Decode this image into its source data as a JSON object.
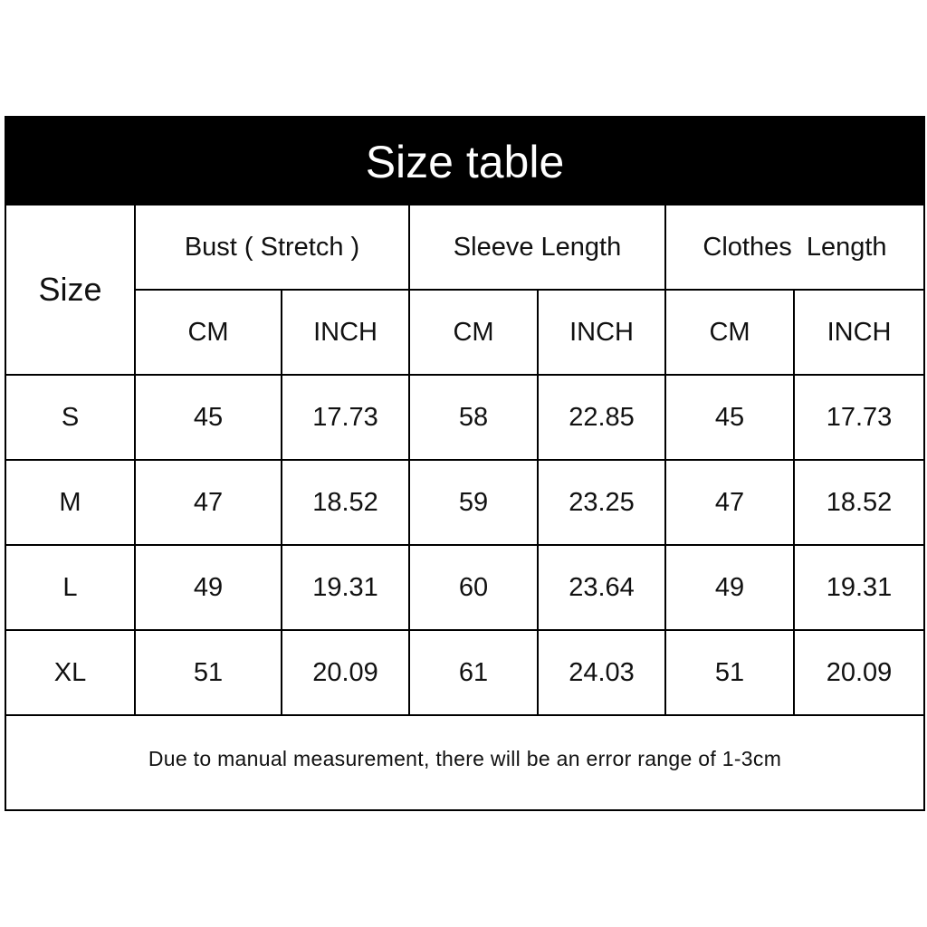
{
  "title": "Size table",
  "headers": {
    "size": "Size",
    "groups": [
      "Bust ( Stretch )",
      "Sleeve Length",
      "Clothes  Length"
    ],
    "units": [
      "CM",
      "INCH",
      "CM",
      "INCH",
      "CM",
      "INCH"
    ]
  },
  "rows": [
    {
      "size": "S",
      "values": [
        "45",
        "17.73",
        "58",
        "22.85",
        "45",
        "17.73"
      ]
    },
    {
      "size": "M",
      "values": [
        "47",
        "18.52",
        "59",
        "23.25",
        "47",
        "18.52"
      ]
    },
    {
      "size": "L",
      "values": [
        "49",
        "19.31",
        "60",
        "23.64",
        "49",
        "19.31"
      ]
    },
    {
      "size": "XL",
      "values": [
        "51",
        "20.09",
        "61",
        "24.03",
        "51",
        "20.09"
      ]
    }
  ],
  "note": "Due to manual measurement, there will be an error range of 1-3cm"
}
